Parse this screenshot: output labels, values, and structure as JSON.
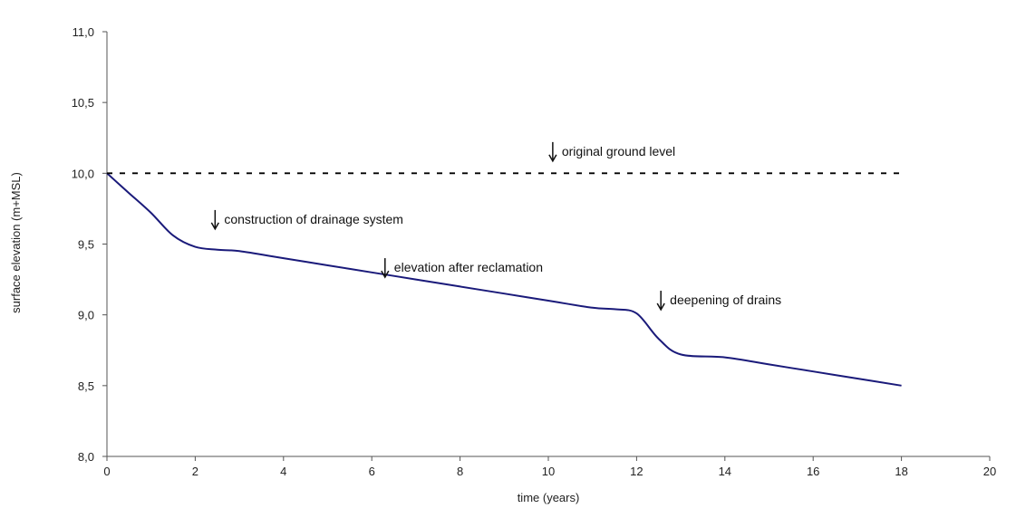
{
  "chart_data": {
    "type": "line",
    "title": "",
    "xlabel": "time (years)",
    "ylabel": "surface elevation (m+MSL)",
    "xlim": [
      0,
      20
    ],
    "ylim": [
      8.0,
      11.0
    ],
    "xticks": [
      0,
      2,
      4,
      6,
      8,
      10,
      12,
      14,
      16,
      18,
      20
    ],
    "xtick_labels": [
      "0",
      "2",
      "4",
      "6",
      "8",
      "10",
      "12",
      "14",
      "16",
      "18",
      "20"
    ],
    "yticks": [
      8.0,
      8.5,
      9.0,
      9.5,
      10.0,
      10.5,
      11.0
    ],
    "ytick_labels": [
      "8,0",
      "8,5",
      "9,0",
      "9,5",
      "10,0",
      "10,5",
      "11,0"
    ],
    "grid": false,
    "series": [
      {
        "color": "#1a1a7a",
        "style": "solid",
        "x": [
          0,
          0.5,
          1.0,
          1.5,
          2.0,
          2.5,
          3.0,
          4.0,
          5.0,
          6.0,
          7.0,
          8.0,
          9.0,
          10.0,
          11.0,
          11.5,
          12.0,
          12.5,
          13.0,
          14.0,
          15.0,
          16.0,
          17.0,
          18.0
        ],
        "y": [
          10.0,
          9.86,
          9.72,
          9.56,
          9.48,
          9.46,
          9.45,
          9.4,
          9.35,
          9.3,
          9.25,
          9.2,
          9.15,
          9.1,
          9.05,
          9.04,
          9.01,
          8.83,
          8.72,
          8.7,
          8.65,
          8.6,
          8.55,
          8.5
        ]
      },
      {
        "color": "#000000",
        "style": "dashed",
        "x": [
          0,
          18
        ],
        "y": [
          10.0,
          10.0
        ]
      }
    ],
    "annotations": [
      {
        "text": "original ground level",
        "x": 10.1,
        "y": 10.15
      },
      {
        "text": "construction of drainage system",
        "x": 2.45,
        "y": 9.67
      },
      {
        "text": "elevation after reclamation",
        "x": 6.3,
        "y": 9.33
      },
      {
        "text": "deepening of drains",
        "x": 12.55,
        "y": 9.1
      }
    ]
  }
}
